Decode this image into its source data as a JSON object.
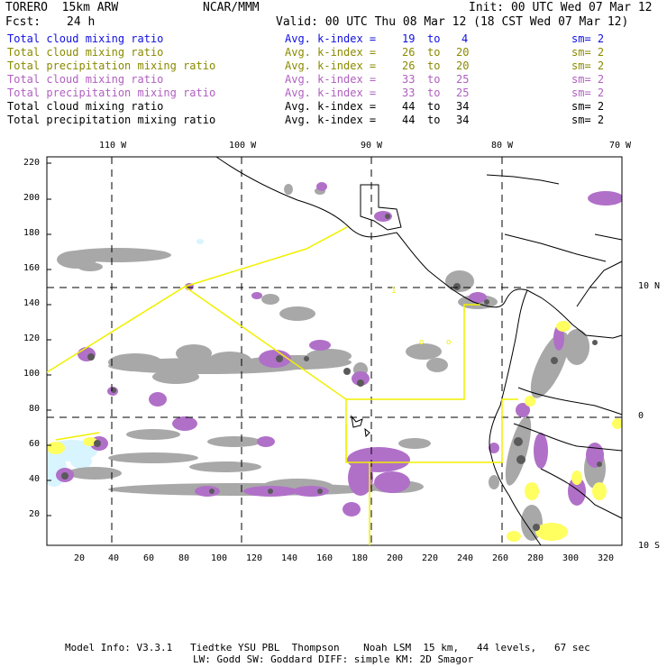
{
  "header": {
    "model": "TORERO  15km ARW",
    "org": "NCAR/MMM",
    "init": "Init: 00 UTC Wed 07 Mar 12",
    "fcst_label": "Fcst:",
    "fcst_value": "24 h",
    "valid": "Valid: 00 UTC Thu 08 Mar 12 (18 CST Wed 07 Mar 12)"
  },
  "legend": [
    {
      "field": "Total cloud mixing ratio",
      "avg_label": "Avg. k-index =",
      "k_from": "19",
      "to_label": "to",
      "k_to": "4",
      "sm": "sm= 2",
      "color": "#1010e0"
    },
    {
      "field": "Total cloud mixing ratio",
      "avg_label": "Avg. k-index =",
      "k_from": "26",
      "to_label": "to",
      "k_to": "20",
      "sm": "sm= 2",
      "color": "#8a8a00"
    },
    {
      "field": "Total precipitation mixing ratio",
      "avg_label": "Avg. k-index =",
      "k_from": "26",
      "to_label": "to",
      "k_to": "20",
      "sm": "sm= 2",
      "color": "#8a8a00"
    },
    {
      "field": "Total cloud mixing ratio",
      "avg_label": "Avg. k-index =",
      "k_from": "33",
      "to_label": "to",
      "k_to": "25",
      "sm": "sm= 2",
      "color": "#b060c0"
    },
    {
      "field": "Total precipitation mixing ratio",
      "avg_label": "Avg. k-index =",
      "k_from": "33",
      "to_label": "to",
      "k_to": "25",
      "sm": "sm= 2",
      "color": "#b060c0"
    },
    {
      "field": "Total cloud mixing ratio",
      "avg_label": "Avg. k-index =",
      "k_from": "44",
      "to_label": "to",
      "k_to": "34",
      "sm": "sm= 2",
      "color": "#000000"
    },
    {
      "field": "Total precipitation mixing ratio",
      "avg_label": "Avg. k-index =",
      "k_from": "44",
      "to_label": "to",
      "k_to": "34",
      "sm": "sm= 2",
      "color": "#000000"
    }
  ],
  "map": {
    "lon_labels": [
      "110 W",
      "100 W",
      "90 W",
      "80 W",
      "70 W"
    ],
    "lat_labels": [
      "10 N",
      "0",
      "10 S"
    ],
    "y_ticks": [
      "220",
      "200",
      "180",
      "160",
      "140",
      "120",
      "100",
      "80",
      "60",
      "40",
      "20"
    ],
    "x_ticks": [
      "20",
      "40",
      "60",
      "80",
      "100",
      "120",
      "140",
      "160",
      "180",
      "200",
      "220",
      "240",
      "260",
      "280",
      "300",
      "320"
    ],
    "colors": {
      "gray": "#a8a8a8",
      "dark_gray": "#5a5a5a",
      "purple": "#b070c8",
      "yellow": "#ffff60",
      "cyan": "#d8f4ff",
      "boundary_line": "#f0f000"
    }
  },
  "footer": {
    "line1": "Model Info: V3.3.1   Tiedtke YSU PBL  Thompson    Noah LSM  15 km,   44 levels,   67 sec",
    "line2": "LW: Godd SW: Goddard DIFF: simple KM: 2D Smagor"
  }
}
